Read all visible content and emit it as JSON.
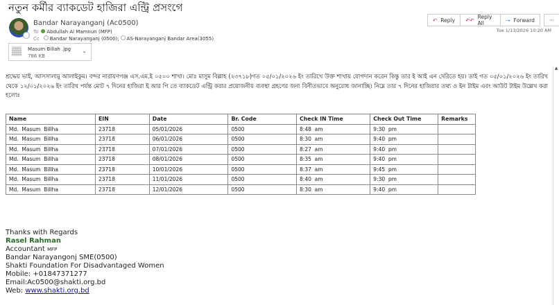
{
  "subject": "নতুন কর্মীর ব্যাকডেট হাজিরা এন্ট্রি প্রসংগে",
  "sender": "Bandar Narayanganj (Ac0500)",
  "to_label": "To",
  "to": "Abdullah Al Mamnun (MFP)",
  "cc_label": "Cc",
  "cc": [
    "Bandar Narayanganj (0500);",
    "AS-Narayanganj Bandar Area(3055)"
  ],
  "attachment": {
    "name": "Masum Billah .jpg",
    "size": "786 KB"
  },
  "actions": {
    "reply": "Reply",
    "reply_all": "Reply All",
    "forward": "Forward",
    "more": "···"
  },
  "timestamp": "Tue 1/13/2026 10:20 AM",
  "body": "শ্রদ্ধেয় ভাই, আসসালামু আলাইকুম। বন্দর নারায়ণগঞ্জ এস.এম.ই ০৫০০ শাখা। মোঃ মাসুম বিল্লাহ (২৩৭১৮)গত ০৫/০১/২০২৬ ইং তারিখে উক্ত শাখায় যোগদান করেন কিন্তু তার ই আই এন দেরিতে হয়। তাই গত ০৫/০১/২০২৬ ইং তারিখ থেকে ১২/০১/২০২৬ ইং তারিখ পর্যন্ত মোট ৭ দিনের হাজিরা ই আর পি তে ব্যাকডেট এন্ট্রি করার প্রয়োজনীয় ব্যবস্থা গ্রহণের জন্য বিনীতভাবে অনুরোধ জানাচ্ছি। নিম্নে তার ৭ দিনের হাজিরার তথ্য ও ইন টাইম এবং আউট টাইম উল্লেখ করা হলোঃ",
  "table": {
    "headers": [
      "Name",
      "EIN",
      "Date",
      "Br. Code",
      "Check IN Time",
      "Check Out Time",
      "Remarks"
    ],
    "rows": [
      [
        "Md.  Masum  Billha",
        "23718",
        "05/01/2026",
        "0500",
        "8:48  am",
        "9:30  pm",
        ""
      ],
      [
        "Md.  Masum  Billha",
        "23718",
        "06/01/2026",
        "0500",
        "8:30  am",
        "9:40  pm",
        ""
      ],
      [
        "Md.  Masum  Billha",
        "23718",
        "07/01/2026",
        "0500",
        "8:27  am",
        "9:40  pm",
        ""
      ],
      [
        "Md.  Masum  Billha",
        "23718",
        "08/01/2026",
        "0500",
        "8:35  am",
        "9:40  pm",
        ""
      ],
      [
        "Md.  Masum  Billha",
        "23718",
        "10/01/2026",
        "0500",
        "8:37  am",
        "9:45  pm",
        ""
      ],
      [
        "Md.  Masum  Billha",
        "23718",
        "11/01/2026",
        "0500",
        "8:40  am",
        "9:30  pm",
        ""
      ],
      [
        "Md.  Masum  Billha",
        "23718",
        "12/01/2026",
        "0500",
        "8:30  am",
        "9:40  pm",
        ""
      ]
    ]
  },
  "signature": {
    "greeting": "Thanks with Regards",
    "name": "Rasel Rahman",
    "title": "Accountant",
    "title_suffix": "MFP",
    "branch": "Bandar Narayangonj SME(0500)",
    "org": "Shakti Foundation For Disadvantaged Women",
    "mobile": "Mobile: +01847371277",
    "email": "Email:Ac0500@shakti.org.bd",
    "web_label": "Web: ",
    "web": "www.shakti.org.bd"
  }
}
